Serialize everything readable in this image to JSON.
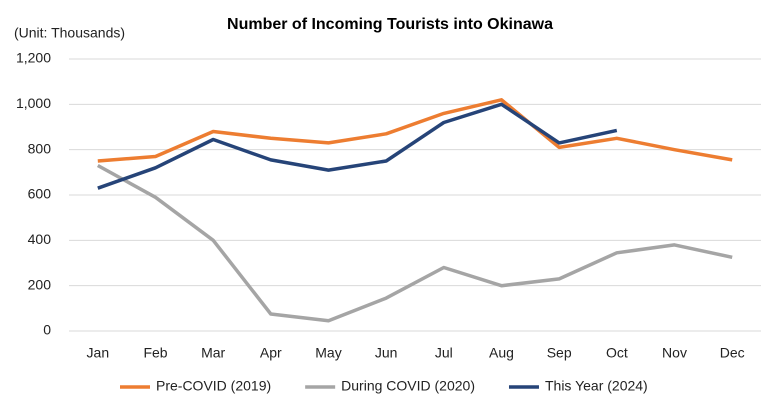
{
  "chart_data": {
    "type": "line",
    "title": "Number of Incoming Tourists into Okinawa",
    "unit_label": "(Unit: Thousands)",
    "categories": [
      "Jan",
      "Feb",
      "Mar",
      "Apr",
      "May",
      "Jun",
      "Jul",
      "Aug",
      "Sep",
      "Oct",
      "Nov",
      "Dec"
    ],
    "series": [
      {
        "name": "Pre-COVID (2019)",
        "color": "#ed7d31",
        "values": [
          750,
          770,
          880,
          850,
          830,
          870,
          960,
          1020,
          810,
          850,
          800,
          755
        ]
      },
      {
        "name": "During COVID (2020)",
        "color": "#a5a5a5",
        "values": [
          730,
          590,
          400,
          75,
          45,
          145,
          280,
          200,
          230,
          345,
          380,
          325
        ]
      },
      {
        "name": "This Year (2024)",
        "color": "#264478",
        "values": [
          630,
          720,
          845,
          755,
          710,
          750,
          920,
          1000,
          830,
          885,
          null,
          null
        ]
      }
    ],
    "ylim": [
      0,
      1200
    ],
    "yticks": [
      0,
      200,
      400,
      600,
      800,
      {
        "value": 1000,
        "label": "1,000"
      },
      {
        "value": 1200,
        "label": "1,200"
      }
    ],
    "grid": true,
    "legend": "bottom"
  }
}
